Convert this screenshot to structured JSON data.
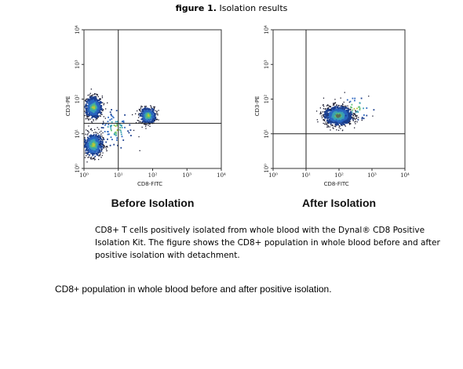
{
  "figure": {
    "label": "figure 1.",
    "title": "Isolation results"
  },
  "chart_data": [
    {
      "type": "scatter",
      "title": "Before Isolation",
      "xlabel": "CD8-FITC",
      "ylabel": "CD3-PE",
      "x_scale": "log",
      "y_scale": "log",
      "xlim": [
        1,
        10000
      ],
      "ylim": [
        1,
        10000
      ],
      "x_ticks": [
        "10⁰",
        "10¹",
        "10²",
        "10³",
        "10⁴"
      ],
      "y_ticks": [
        "10⁰",
        "10¹",
        "10²",
        "10³",
        "10⁴"
      ],
      "quadrant_gate": {
        "x": 10,
        "y": 20
      },
      "populations": [
        {
          "description": "CD3+ CD8-",
          "center": [
            1.8,
            50
          ],
          "density": "high"
        },
        {
          "description": "CD3+ CD8+",
          "center": [
            70,
            35
          ],
          "density": "high"
        },
        {
          "description": "CD3- CD8-",
          "center": [
            1.8,
            5
          ],
          "density": "high"
        }
      ]
    },
    {
      "type": "scatter",
      "title": "After Isolation",
      "xlabel": "CD8-FITC",
      "ylabel": "CD3-PE",
      "x_scale": "log",
      "y_scale": "log",
      "xlim": [
        1,
        10000
      ],
      "ylim": [
        1,
        10000
      ],
      "x_ticks": [
        "10⁰",
        "10¹",
        "10²",
        "10³",
        "10⁴"
      ],
      "y_ticks": [
        "10⁰",
        "10¹",
        "10²",
        "10³",
        "10⁴"
      ],
      "quadrant_gate": {
        "x": 10,
        "y": 10
      },
      "populations": [
        {
          "description": "CD3+ CD8+",
          "center": [
            90,
            35
          ],
          "density": "very high"
        }
      ]
    }
  ],
  "caption": "CD8+ T cells positively isolated from whole blood with the Dynal®  CD8 Positive Isolation Kit.  The figure shows the CD8+ population in whole blood before and after positive isolation with detachment.",
  "footer": "CD8+ population in whole blood before and after positive isolation."
}
